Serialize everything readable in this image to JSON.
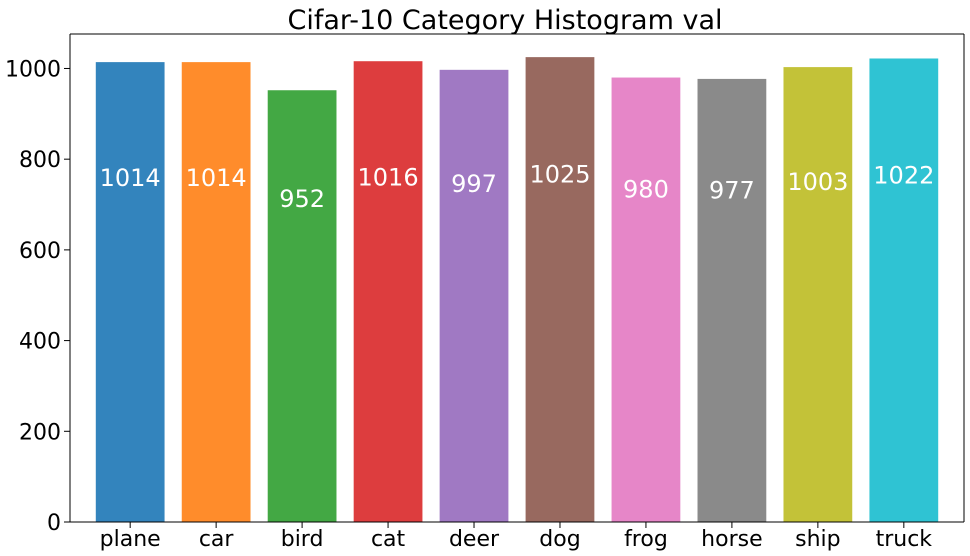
{
  "chart_data": {
    "type": "bar",
    "title": "Cifar-10 Category Histogram val",
    "xlabel": "",
    "ylabel": "",
    "categories": [
      "plane",
      "car",
      "bird",
      "cat",
      "deer",
      "dog",
      "frog",
      "horse",
      "ship",
      "truck"
    ],
    "values": [
      1014,
      1014,
      952,
      1016,
      997,
      1025,
      980,
      977,
      1003,
      1022
    ],
    "colors": [
      "#3384bd",
      "#ff8c2b",
      "#43a844",
      "#dd3d3e",
      "#a079c3",
      "#98695f",
      "#e686c8",
      "#8a8a8a",
      "#c3c238",
      "#2fc3d3"
    ],
    "ylim": [
      0,
      1076
    ],
    "yticks": [
      0,
      200,
      400,
      600,
      800,
      1000
    ],
    "grid": false,
    "legend": "none",
    "data_labels": [
      "1014",
      "1014",
      "952",
      "1016",
      "997",
      "1025",
      "980",
      "977",
      "1003",
      "1022"
    ]
  }
}
